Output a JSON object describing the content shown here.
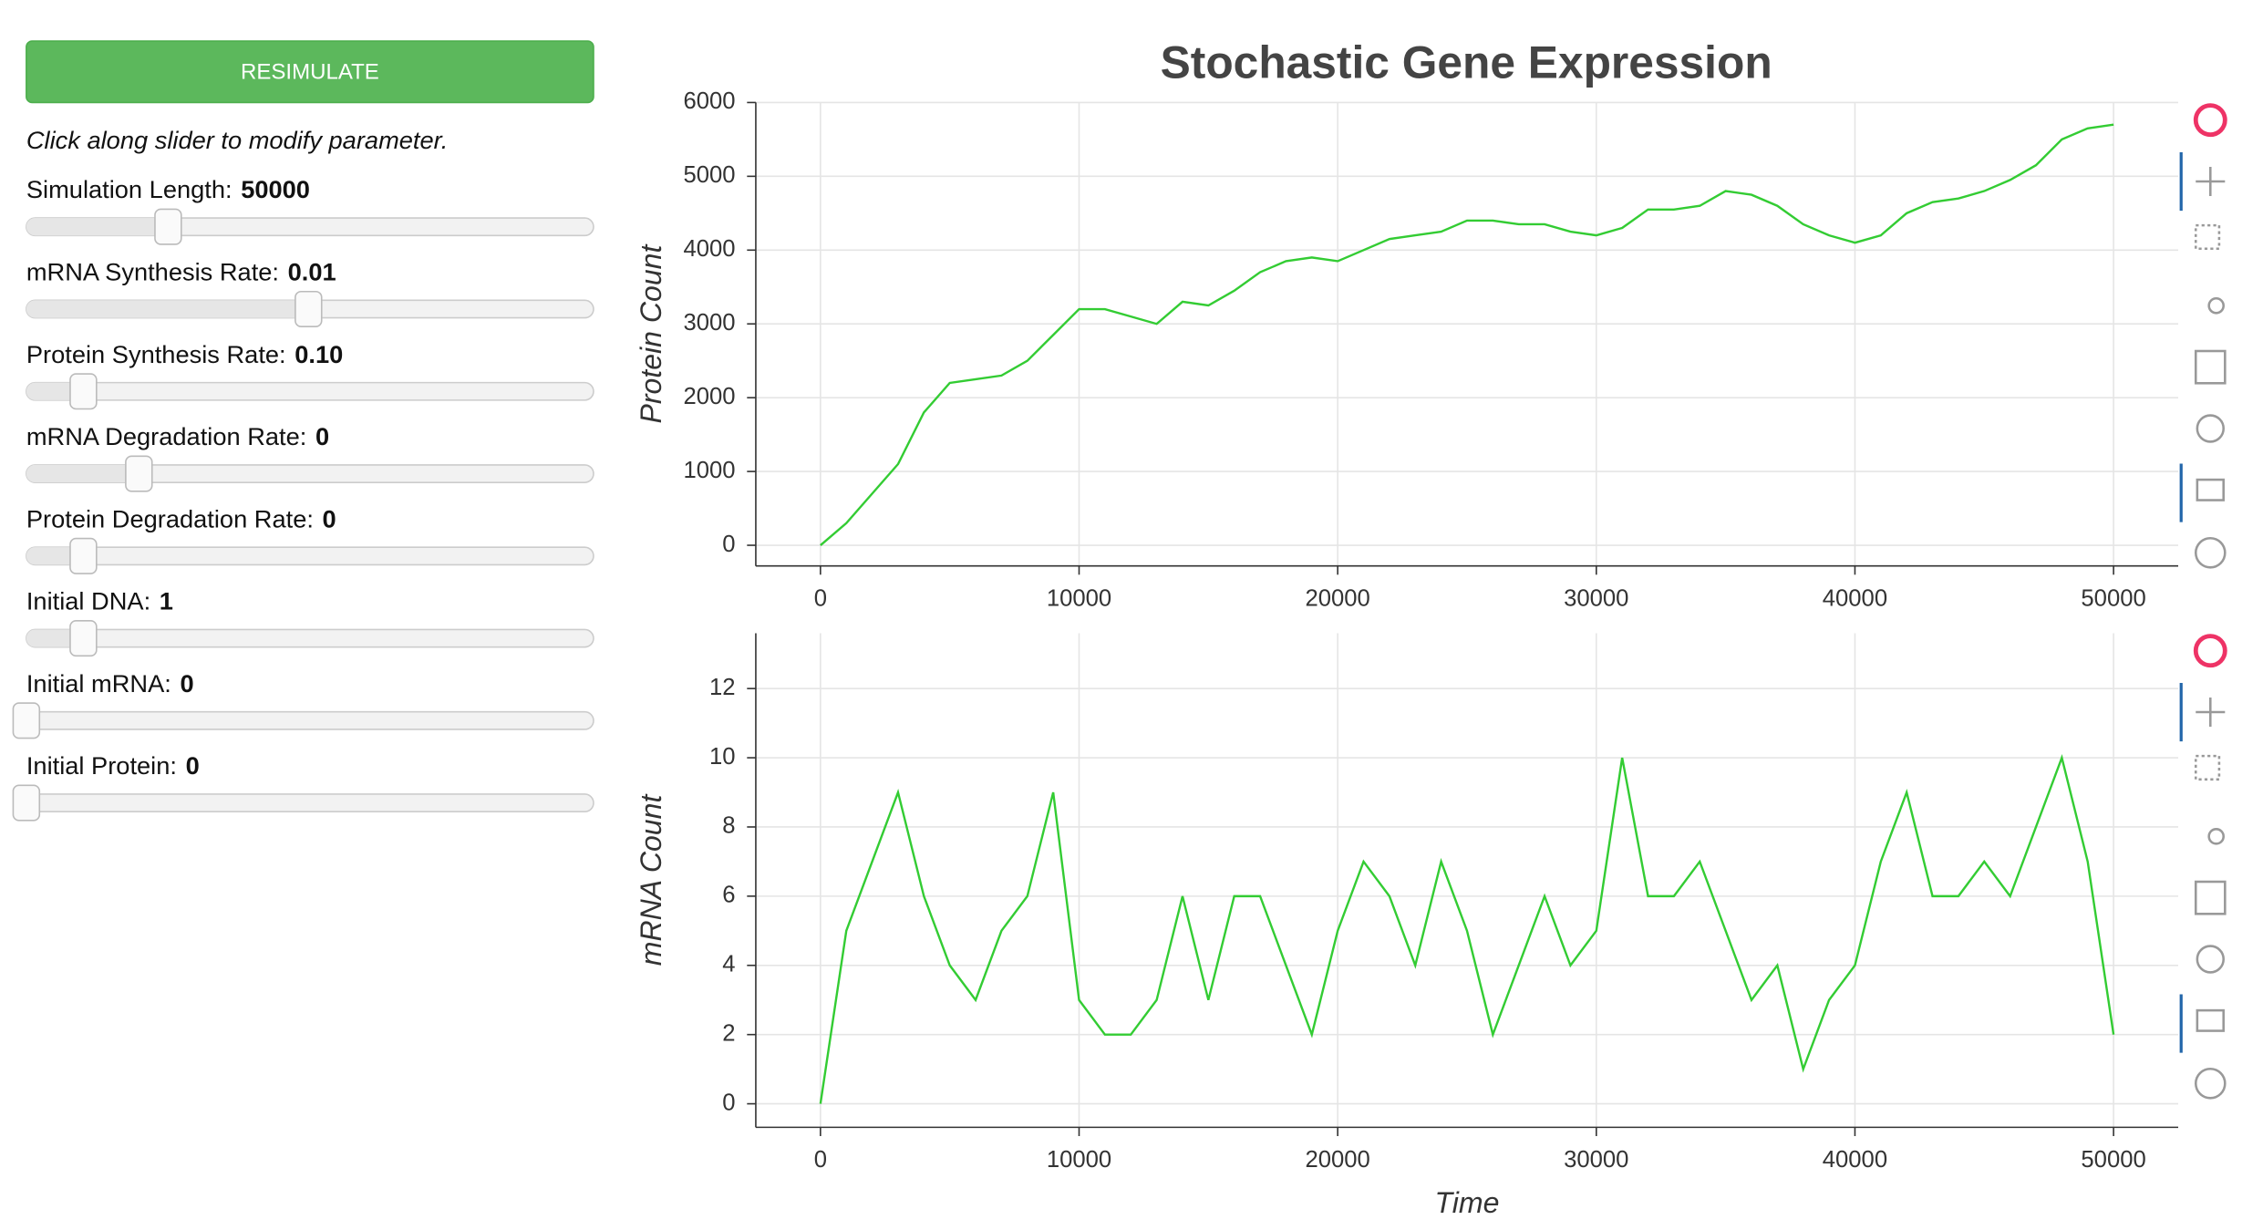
{
  "button": "RESIMULATE",
  "hint": "Click along slider to modify parameter.",
  "sliders": [
    {
      "label": "Simulation Length:",
      "value": "50000"
    },
    {
      "label": "mRNA Synthesis Rate:",
      "value": "0.01"
    },
    {
      "label": "Protein Synthesis Rate:",
      "value": "0.10"
    },
    {
      "label": "mRNA Degradation Rate:",
      "value": "0"
    },
    {
      "label": "Protein Degradation Rate:",
      "value": "0"
    },
    {
      "label": "Initial DNA:",
      "value": "1"
    },
    {
      "label": "Initial mRNA:",
      "value": "0"
    },
    {
      "label": "Initial Protein:",
      "value": "0"
    }
  ],
  "chart_data": [
    {
      "type": "line",
      "title": "Stochastic Gene Expression",
      "ylabel": "Protein Count",
      "x": [
        0,
        1000,
        2000,
        3000,
        4000,
        5000,
        6000,
        7000,
        8000,
        9000,
        10000,
        11000,
        12000,
        13000,
        14000,
        15000,
        16000,
        17000,
        18000,
        19000,
        20000,
        21000,
        22000,
        23000,
        24000,
        25000,
        26000,
        27000,
        28000,
        29000,
        30000,
        31000,
        32000,
        33000,
        34000,
        35000,
        36000,
        37000,
        38000,
        39000,
        40000,
        41000,
        42000,
        43000,
        44000,
        45000,
        46000,
        47000,
        48000,
        49000,
        50000
      ],
      "series": [
        {
          "color": "#33cc33",
          "values": [
            0,
            300,
            700,
            1100,
            1800,
            2200,
            2250,
            2300,
            2500,
            2850,
            3200,
            3200,
            3100,
            3000,
            3300,
            3250,
            3450,
            3700,
            3850,
            3900,
            3850,
            4000,
            4150,
            4200,
            4250,
            4400,
            4400,
            4350,
            4350,
            4250,
            4200,
            4300,
            4550,
            4550,
            4600,
            4800,
            4750,
            4600,
            4350,
            4200,
            4100,
            4200,
            4500,
            4650,
            4700,
            4800,
            4950,
            5150,
            5500,
            5650,
            5700
          ]
        }
      ],
      "xlim": [
        -2500,
        52500
      ],
      "ylim": [
        -280,
        6000
      ],
      "xticks": [
        0,
        10000,
        20000,
        30000,
        40000,
        50000
      ],
      "yticks": [
        0,
        1000,
        2000,
        3000,
        4000,
        5000,
        6000
      ],
      "grid": true
    },
    {
      "type": "line",
      "xlabel": "Time",
      "ylabel": "mRNA Count",
      "x": [
        0,
        1000,
        2000,
        3000,
        4000,
        5000,
        6000,
        7000,
        8000,
        9000,
        10000,
        11000,
        12000,
        13000,
        14000,
        15000,
        16000,
        17000,
        18000,
        19000,
        20000,
        21000,
        22000,
        23000,
        24000,
        25000,
        26000,
        27000,
        28000,
        29000,
        30000,
        31000,
        32000,
        33000,
        34000,
        35000,
        36000,
        37000,
        38000,
        39000,
        40000,
        41000,
        42000,
        43000,
        44000,
        45000,
        46000,
        47000,
        48000,
        49000,
        50000
      ],
      "series": [
        {
          "color": "#33cc33",
          "values": [
            0,
            5,
            7,
            9,
            6,
            4,
            3,
            5,
            6,
            9,
            3,
            2,
            2,
            3,
            6,
            3,
            6,
            6,
            4,
            2,
            5,
            7,
            6,
            4,
            7,
            5,
            2,
            4,
            6,
            4,
            5,
            10,
            6,
            6,
            7,
            5,
            3,
            4,
            1,
            3,
            4,
            7,
            9,
            6,
            6,
            7,
            6,
            8,
            10,
            7,
            2
          ]
        }
      ],
      "xlim": [
        -2500,
        52500
      ],
      "ylim": [
        -0.68,
        13.6
      ],
      "xticks": [
        0,
        10000,
        20000,
        30000,
        40000,
        50000
      ],
      "yticks": [
        0,
        2,
        4,
        6,
        8,
        10,
        12
      ],
      "grid": true
    }
  ]
}
